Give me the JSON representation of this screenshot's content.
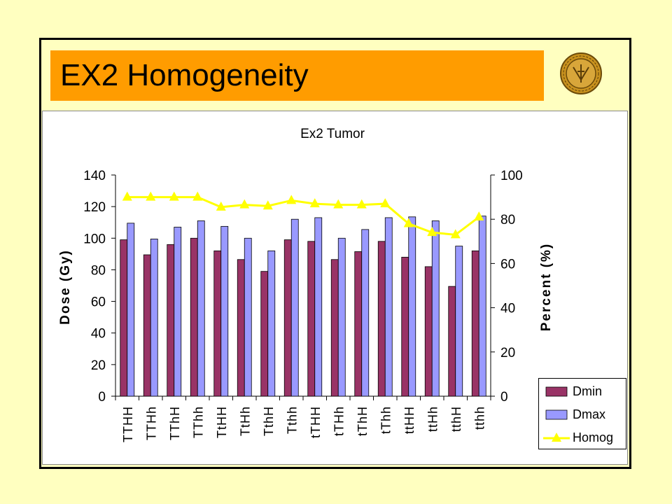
{
  "slide": {
    "title": "EX2 Homogeneity",
    "background_color": "#ffffc0",
    "title_bar_color": "#ff9c00",
    "logo": "university-seal-icon"
  },
  "chart_data": {
    "type": "bar",
    "title": "Ex2 Tumor",
    "ylabel": "Dose (Gy)",
    "y2label": "Percent (%)",
    "ylim": [
      0,
      140
    ],
    "y2lim": [
      0,
      100
    ],
    "yticks": [
      "0",
      "20",
      "40",
      "60",
      "80",
      "100",
      "120",
      "140"
    ],
    "y2ticks": [
      "0",
      "20",
      "40",
      "60",
      "80",
      "100"
    ],
    "categories": [
      "TTHH",
      "TTHh",
      "TThH",
      "TThh",
      "TtHH",
      "TtHh",
      "TthH",
      "Tthh",
      "tTHH",
      "tTHh",
      "tThH",
      "tThh",
      "ttHH",
      "ttHh",
      "tthH",
      "tthh"
    ],
    "series": [
      {
        "name": "Dmin",
        "type": "bar",
        "axis": "left",
        "color": "#993366",
        "values": [
          99,
          89.5,
          96,
          100,
          92,
          86.5,
          79,
          99,
          98,
          86.5,
          91.5,
          98,
          88,
          82,
          69.5,
          92
        ]
      },
      {
        "name": "Dmax",
        "type": "bar",
        "axis": "left",
        "color": "#9999ff",
        "values": [
          109.5,
          99.5,
          107,
          111,
          107.5,
          100,
          92,
          112,
          113,
          100,
          105.5,
          113,
          113.5,
          111,
          95,
          114
        ]
      },
      {
        "name": "Homog",
        "type": "line",
        "axis": "right",
        "color": "#ffff00",
        "values": [
          90,
          90,
          90,
          90,
          85.5,
          86.5,
          86,
          88.5,
          87,
          86.5,
          86.5,
          87,
          78,
          74,
          73,
          81
        ]
      }
    ],
    "grid": false,
    "legend_position": "bottom-right"
  }
}
